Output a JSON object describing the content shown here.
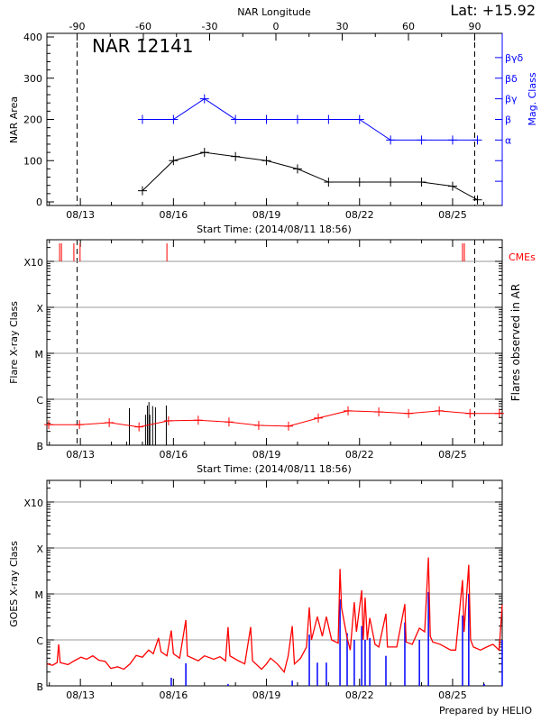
{
  "header": {
    "lat_label": "Lat: +15.92",
    "region_title": "NAR 12141",
    "longitude_axis_label": "NAR Longitude",
    "prepared_by": "Prepared by HELIO"
  },
  "colors": {
    "area": "#000000",
    "mag_class": "#0000ff",
    "goes_long": "#ff0000",
    "goes_short": "#0000ff",
    "cme": "#ff0000",
    "flare": "#000000",
    "grid": "#999999"
  },
  "chart_data": [
    {
      "type": "line",
      "panel": "nar-area",
      "xlabel": "Start Time: (2014/08/11 18:56)",
      "ylabel": "NAR Area",
      "y2label": "Mag. Class",
      "xlim_days_of_aug_2014": [
        11.92,
        26.6
      ],
      "x_tick_labels": [
        {
          "day": 13,
          "label": "08/13"
        },
        {
          "day": 16,
          "label": "08/16"
        },
        {
          "day": 19,
          "label": "08/19"
        },
        {
          "day": 22,
          "label": "08/22"
        },
        {
          "day": 25,
          "label": "08/25"
        }
      ],
      "ylim": [
        -9,
        409
      ],
      "y_ticks": [
        0,
        100,
        200,
        300,
        400
      ],
      "top_axis_ticks": [
        -90,
        -60,
        -30,
        0,
        30,
        60,
        90
      ],
      "longitude_limits_marked": [
        -90,
        90
      ],
      "mag_class_levels": [
        {
          "value": 350,
          "label": "βγδ"
        },
        {
          "value": 300,
          "label": "βδ"
        },
        {
          "value": 250,
          "label": "βγ"
        },
        {
          "value": 200,
          "label": "β"
        },
        {
          "value": 150,
          "label": "α"
        },
        {
          "value": 100,
          "label": ""
        },
        {
          "value": 50,
          "label": ""
        }
      ],
      "series": [
        {
          "key": "area",
          "x": [
            15,
            16,
            17,
            18,
            19,
            20,
            21,
            22,
            23,
            24,
            25,
            25.8
          ],
          "y": [
            27,
            100,
            120,
            110,
            100,
            80,
            48,
            48,
            48,
            48,
            38,
            5
          ]
        },
        {
          "key": "mag_class",
          "x": [
            15,
            16,
            17,
            18,
            19,
            20,
            21,
            22,
            23,
            24,
            25,
            25.8
          ],
          "y": [
            "β",
            "β",
            "βγ",
            "β",
            "β",
            "β",
            "β",
            "β",
            "α",
            "α",
            "α",
            "α"
          ]
        }
      ]
    },
    {
      "type": "line",
      "panel": "flares",
      "xlabel": "Start Time: (2014/08/11 18:56)",
      "ylabel": "Flare X-ray Class",
      "y2label": "Flares observed in AR",
      "cme_label": "CMEs",
      "y_scale": "log",
      "ylim_flux": [
        1e-07,
        0.00295
      ],
      "class_ticks": [
        {
          "flux": 1e-07,
          "label": "B"
        },
        {
          "flux": 1e-06,
          "label": "C"
        },
        {
          "flux": 1e-05,
          "label": "M"
        },
        {
          "flux": 0.0001,
          "label": "X"
        },
        {
          "flux": 0.001,
          "label": "X10"
        }
      ],
      "daily_goes_mean": {
        "x": [
          11.98,
          12.97,
          13.93,
          14.89,
          15.84,
          16.8,
          17.79,
          18.75,
          19.71,
          20.67,
          21.63,
          22.62,
          23.58,
          24.57,
          25.56,
          26.51
        ],
        "y": [
          2.8e-07,
          2.8e-07,
          3.1e-07,
          2.5e-07,
          3.4e-07,
          3.5e-07,
          3.2e-07,
          2.7e-07,
          2.6e-07,
          3.9e-07,
          5.6e-07,
          5.3e-07,
          4.9e-07,
          5.6e-07,
          4.9e-07,
          4.9e-07
        ]
      },
      "flares": {
        "x": [
          14.49,
          14.58,
          15.1,
          15.16,
          15.21,
          15.24,
          15.33,
          15.42,
          15.77
        ],
        "y": [
          1.2e-07,
          6.4e-07,
          4.6e-07,
          7.3e-07,
          8.7e-07,
          4.6e-07,
          7.1e-07,
          6.7e-07,
          7.3e-07
        ]
      },
      "cmes": [
        12.33,
        12.39,
        12.79,
        12.99,
        15.79,
        25.32,
        25.38
      ]
    },
    {
      "type": "line",
      "panel": "goes",
      "ylabel": "GOES X-ray Class",
      "y_scale": "log",
      "ylim_flux": [
        1e-07,
        0.00295
      ],
      "series": [
        {
          "key": "goes_long",
          "points": [
            [
              11.93,
              3e-07
            ],
            [
              12.1,
              2.8e-07
            ],
            [
              12.25,
              3.2e-07
            ],
            [
              12.3,
              8e-07
            ],
            [
              12.35,
              3.2e-07
            ],
            [
              12.6,
              2.9e-07
            ],
            [
              12.8,
              3.5e-07
            ],
            [
              13.02,
              4.2e-07
            ],
            [
              13.2,
              3.8e-07
            ],
            [
              13.4,
              4.5e-07
            ],
            [
              13.6,
              3.6e-07
            ],
            [
              13.8,
              3.4e-07
            ],
            [
              13.98,
              2.4e-07
            ],
            [
              14.2,
              2.6e-07
            ],
            [
              14.4,
              2.3e-07
            ],
            [
              14.6,
              3e-07
            ],
            [
              14.8,
              4.6e-07
            ],
            [
              15.0,
              4.2e-07
            ],
            [
              15.2,
              6e-07
            ],
            [
              15.35,
              5e-07
            ],
            [
              15.52,
              1.1e-06
            ],
            [
              15.6,
              5.5e-07
            ],
            [
              15.79,
              4.5e-07
            ],
            [
              15.93,
              1.6e-06
            ],
            [
              16.0,
              5e-07
            ],
            [
              16.2,
              4e-07
            ],
            [
              16.4,
              2.7e-06
            ],
            [
              16.45,
              4.5e-07
            ],
            [
              16.8,
              3.5e-07
            ],
            [
              17.0,
              4.5e-07
            ],
            [
              17.3,
              3.8e-07
            ],
            [
              17.5,
              4.3e-07
            ],
            [
              17.68,
              3.5e-07
            ],
            [
              17.76,
              1.9e-06
            ],
            [
              17.82,
              4.5e-07
            ],
            [
              18.1,
              3.5e-07
            ],
            [
              18.3,
              3e-07
            ],
            [
              18.49,
              1.9e-06
            ],
            [
              18.55,
              3.5e-07
            ],
            [
              18.84,
              2.3e-07
            ],
            [
              19.0,
              3e-07
            ],
            [
              19.13,
              4e-07
            ],
            [
              19.35,
              3e-07
            ],
            [
              19.57,
              2e-07
            ],
            [
              19.7,
              4.5e-07
            ],
            [
              19.83,
              2e-06
            ],
            [
              19.9,
              3e-07
            ],
            [
              20.1,
              4e-07
            ],
            [
              20.29,
              7e-07
            ],
            [
              20.38,
              5.1e-06
            ],
            [
              20.45,
              1e-06
            ],
            [
              20.64,
              3.2e-06
            ],
            [
              20.8,
              1.2e-06
            ],
            [
              20.93,
              3.2e-06
            ],
            [
              21.1,
              1e-06
            ],
            [
              21.31,
              8.5e-07
            ],
            [
              21.37,
              3.5e-05
            ],
            [
              21.42,
              5e-06
            ],
            [
              21.6,
              1.1e-06
            ],
            [
              21.7,
              6e-07
            ],
            [
              21.83,
              6.6e-06
            ],
            [
              21.9,
              1.5e-06
            ],
            [
              22.07,
              1.2e-05
            ],
            [
              22.12,
              1e-06
            ],
            [
              22.18,
              8.3e-06
            ],
            [
              22.25,
              1e-06
            ],
            [
              22.33,
              3e-06
            ],
            [
              22.5,
              8e-07
            ],
            [
              22.62,
              7e-07
            ],
            [
              22.85,
              3.7e-06
            ],
            [
              22.9,
              7e-07
            ],
            [
              23.2,
              7e-07
            ],
            [
              23.46,
              6e-06
            ],
            [
              23.5,
              9e-07
            ],
            [
              23.7,
              8e-07
            ],
            [
              23.93,
              1.8e-06
            ],
            [
              24.1,
              1.5e-06
            ],
            [
              24.22,
              6.2e-05
            ],
            [
              24.28,
              1.2e-06
            ],
            [
              24.36,
              9e-07
            ],
            [
              24.6,
              8e-07
            ],
            [
              24.94,
              6e-07
            ],
            [
              25.1,
              6e-07
            ],
            [
              25.32,
              2e-05
            ],
            [
              25.37,
              1.5e-06
            ],
            [
              25.52,
              4.3e-05
            ],
            [
              25.58,
              1e-06
            ],
            [
              25.67,
              7e-07
            ],
            [
              25.9,
              6e-07
            ],
            [
              26.1,
              7e-07
            ],
            [
              26.3,
              8e-07
            ],
            [
              26.5,
              6e-07
            ],
            [
              26.6,
              5.8e-06
            ]
          ]
        },
        {
          "key": "goes_short",
          "points": [
            [
              15.93,
              1.5e-07
            ],
            [
              16.4,
              3.1e-07
            ],
            [
              17.76,
              1.1e-07
            ],
            [
              19.83,
              1.3e-07
            ],
            [
              20.38,
              1.3e-06
            ],
            [
              20.64,
              3.2e-07
            ],
            [
              20.93,
              3.2e-07
            ],
            [
              21.37,
              7.6e-06
            ],
            [
              21.6,
              1.4e-06
            ],
            [
              21.83,
              1e-06
            ],
            [
              22.07,
              2e-06
            ],
            [
              22.18,
              1e-06
            ],
            [
              22.33,
              1.1e-06
            ],
            [
              22.85,
              4.5e-07
            ],
            [
              23.46,
              2.4e-06
            ],
            [
              23.93,
              1e-06
            ],
            [
              24.22,
              1.1e-05
            ],
            [
              25.32,
              3.4e-06
            ],
            [
              25.52,
              1e-05
            ],
            [
              26.02,
              1.1e-07
            ],
            [
              26.6,
              1e-06
            ]
          ]
        }
      ]
    }
  ]
}
